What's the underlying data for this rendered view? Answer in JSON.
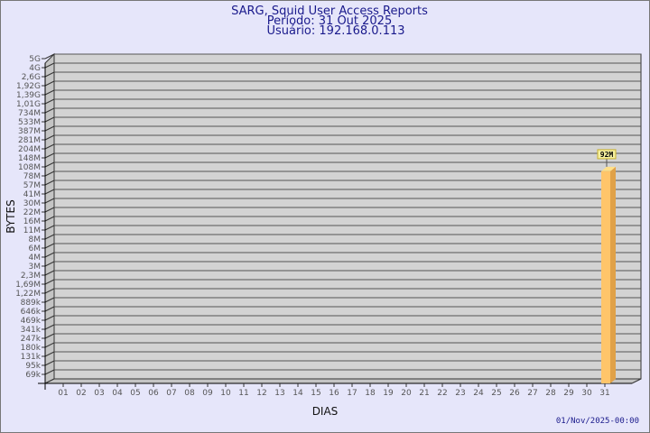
{
  "chart_data": {
    "type": "bar",
    "title": [
      "SARG, Squid User Access Reports",
      "Período: 31 Out 2025",
      "Usuário: 192.168.0.113"
    ],
    "xlabel": "DIAS",
    "ylabel": "BYTES",
    "y_scale": "log",
    "y_ticks": [
      "5G",
      "4G",
      "2,6G",
      "1,92G",
      "1,39G",
      "1,01G",
      "734M",
      "533M",
      "387M",
      "281M",
      "204M",
      "148M",
      "108M",
      "78M",
      "57M",
      "41M",
      "30M",
      "22M",
      "16M",
      "11M",
      "8M",
      "6M",
      "4M",
      "3M",
      "2,3M",
      "1,69M",
      "1,22M",
      "889k",
      "646k",
      "469k",
      "341k",
      "247k",
      "180k",
      "131k",
      "95k",
      "69k"
    ],
    "categories": [
      "01",
      "02",
      "03",
      "04",
      "05",
      "06",
      "07",
      "08",
      "09",
      "10",
      "11",
      "12",
      "13",
      "14",
      "15",
      "16",
      "17",
      "18",
      "19",
      "20",
      "21",
      "22",
      "23",
      "24",
      "25",
      "26",
      "27",
      "28",
      "29",
      "30",
      "31"
    ],
    "bars": [
      {
        "category": "31",
        "value": 92000000,
        "label": "92M"
      }
    ],
    "grid": true,
    "colors": {
      "background": "#e6e6fa",
      "wall": "#d3d3d3",
      "bar_front": "#ffc56a",
      "bar_side": "#e0a148",
      "bar_top": "#ffe08a",
      "title": "#1a1a8c"
    },
    "footer_date": "01/Nov/2025-00:00"
  }
}
